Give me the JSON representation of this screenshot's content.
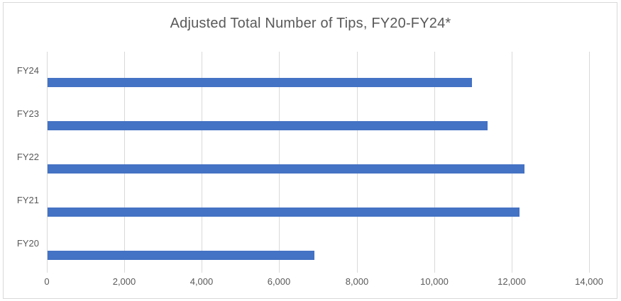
{
  "chart_data": {
    "type": "bar",
    "orientation": "horizontal",
    "title": "Adjusted Total Number of Tips, FY20-FY24*",
    "categories": [
      "FY24",
      "FY23",
      "FY22",
      "FY21",
      "FY20"
    ],
    "values": [
      10975,
      11380,
      12330,
      12200,
      6900
    ],
    "series": [
      {
        "name": "Adjusted Total Number of Tips",
        "values": [
          10975,
          11380,
          12330,
          12200,
          6900
        ]
      }
    ],
    "xlabel": "",
    "ylabel": "",
    "xlim": [
      0,
      14000
    ],
    "xticks": [
      0,
      2000,
      4000,
      6000,
      8000,
      10000,
      12000,
      14000
    ],
    "xtick_labels": [
      "0",
      "2,000",
      "4,000",
      "6,000",
      "8,000",
      "10,000",
      "12,000",
      "14,000"
    ],
    "grid": true,
    "legend": false,
    "data_labels": false
  },
  "colors": {
    "bar": "#4472C4",
    "title_text": "#595959",
    "axis_text": "#595959",
    "gridline": "#D9D9D9",
    "border": "#D9D9D9",
    "background": "#FFFFFF"
  }
}
